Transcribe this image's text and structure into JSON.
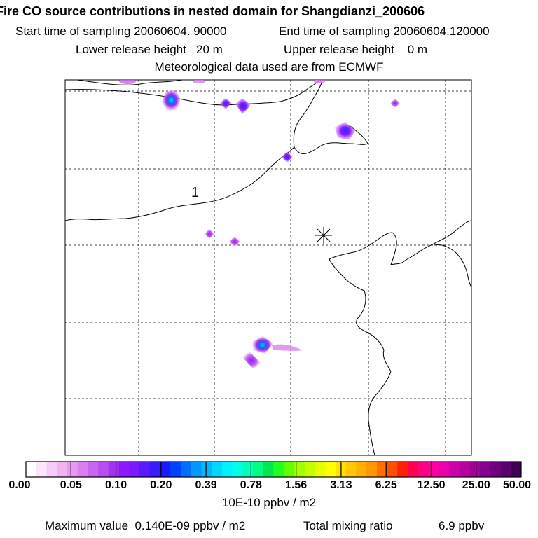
{
  "chart_data": {
    "type": "heatmap",
    "title": "Fire CO source contributions in nested domain for Shangdianzi_200606",
    "start_label": "Start time of sampling 20060604. 90000",
    "end_label": "End time of sampling 20060604.120000",
    "lower_label": "Lower release height   20 m",
    "upper_label": "Upper release height    0 m",
    "met_label": "Meteorological data used are from ECMWF",
    "map_annotation": "1",
    "colorbar_ticks": [
      "0.00",
      "0.05",
      "0.10",
      "0.20",
      "0.39",
      "0.78",
      "1.56",
      "3.13",
      "6.25",
      "12.50",
      "25.00",
      "50.00"
    ],
    "colorbar_unit": "10E-10 ppbv / m2",
    "max_value_label": "Maximum value  0.140E-09 ppbv / m2",
    "total_label": "Total mixing ratio",
    "total_value": "6.9 ppbv"
  },
  "colors": {
    "colorbar": [
      "#ffffff",
      "#fbe6fb",
      "#f6ccf6",
      "#f0b3f0",
      "#e699ee",
      "#d97ff0",
      "#c966f0",
      "#b84df0",
      "#a333f0",
      "#8c1aff",
      "#7a1aff",
      "#5a1aff",
      "#3a1aff",
      "#1a1aff",
      "#0040ff",
      "#0070ff",
      "#0099ff",
      "#00b8ff",
      "#00d8ff",
      "#00f0ff",
      "#00ffe8",
      "#00ffb8",
      "#00ff80",
      "#00e850",
      "#20ff20",
      "#60ff00",
      "#a0ff00",
      "#c8ff00",
      "#e8ff00",
      "#ffff00",
      "#ffe000",
      "#ffc800",
      "#ffb000",
      "#ff9800",
      "#ff7000",
      "#ff5000",
      "#ff2000",
      "#ff0050",
      "#ff0080",
      "#ff00a0",
      "#e800a8",
      "#d000a8",
      "#b800a0",
      "#a00098",
      "#880090",
      "#700080",
      "#580070",
      "#400050"
    ]
  }
}
